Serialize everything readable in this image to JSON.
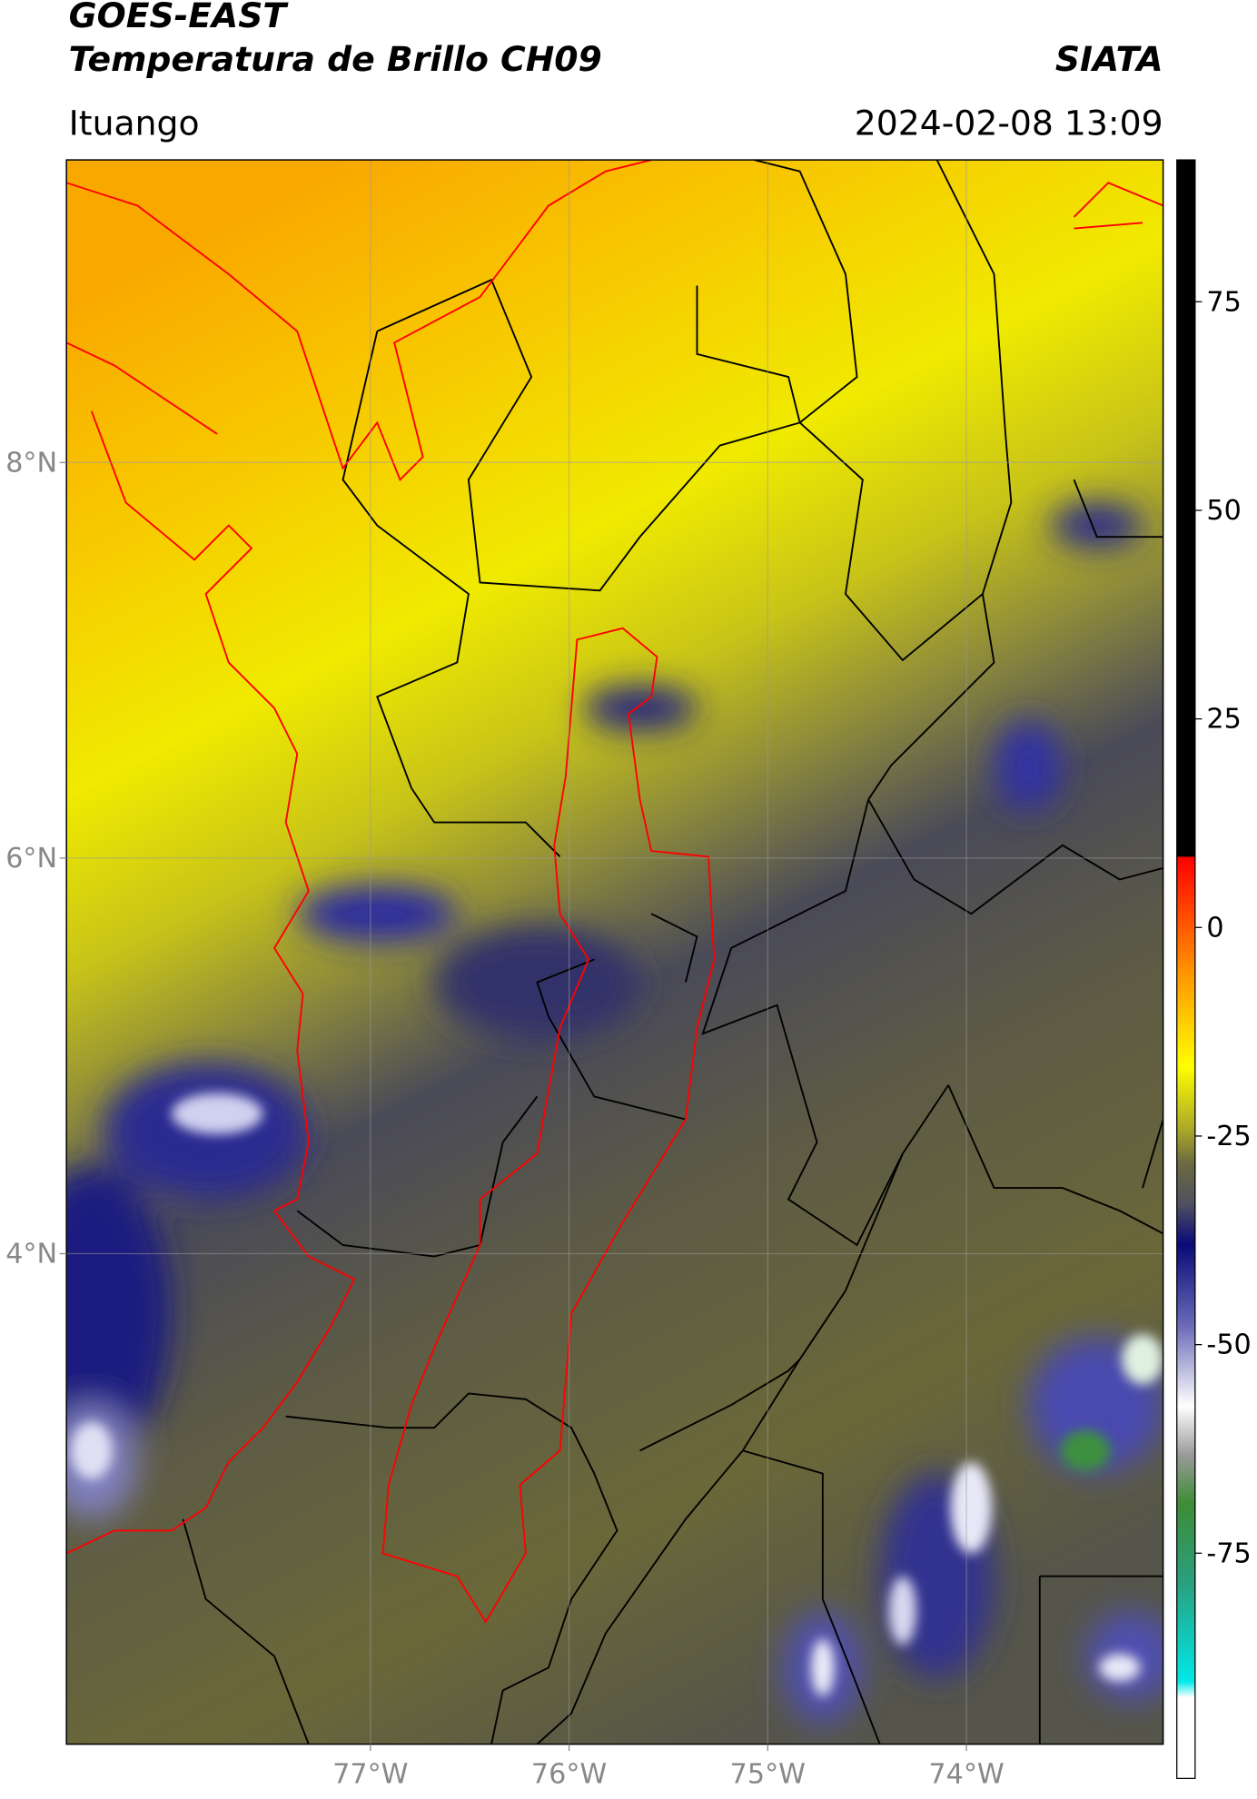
{
  "header": {
    "title": "GOES-EAST",
    "subtitle": "Temperatura de Brillo CH09",
    "brand": "SIATA",
    "location": "Ituango",
    "datetime": "2024-02-08 13:09"
  },
  "map": {
    "xlim": [
      -78.53,
      -73.01
    ],
    "ylim": [
      1.52,
      9.53
    ],
    "xticks": [
      {
        "value": -77,
        "label": "77°W"
      },
      {
        "value": -76,
        "label": "76°W"
      },
      {
        "value": -75,
        "label": "75°W"
      },
      {
        "value": -74,
        "label": "74°W"
      }
    ],
    "yticks": [
      {
        "value": 8,
        "label": "8°N"
      },
      {
        "value": 6,
        "label": "6°N"
      },
      {
        "value": 4,
        "label": "4°N"
      }
    ]
  },
  "colorbar": {
    "ylim": [
      -102,
      92
    ],
    "yticks": [
      75,
      50,
      25,
      0,
      -25,
      -50,
      -75
    ]
  }
}
